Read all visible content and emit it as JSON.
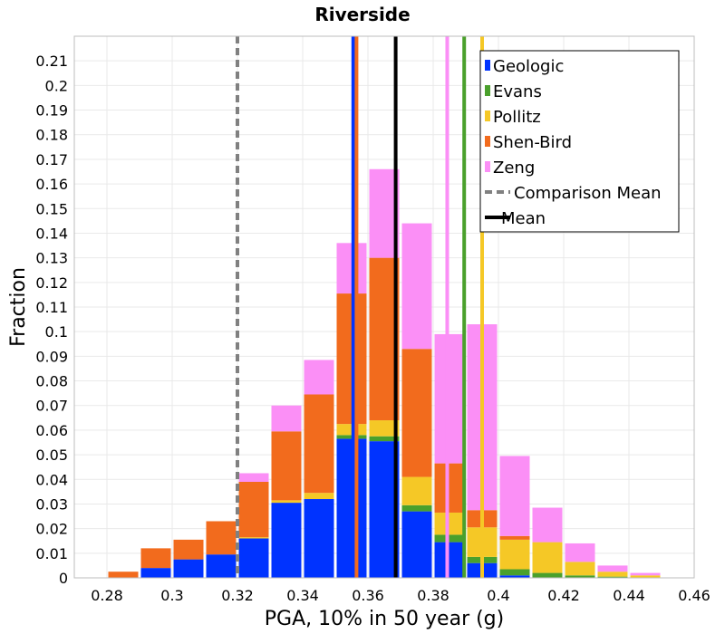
{
  "chart_data": {
    "type": "bar",
    "stacked": true,
    "title": "Riverside",
    "xlabel": "PGA, 10% in 50 year (g)",
    "ylabel": "Fraction",
    "xlim": [
      0.27,
      0.46
    ],
    "ylim": [
      0,
      0.22
    ],
    "bin_width": 0.01,
    "x_ticks": [
      "0.28",
      "0.3",
      "0.32",
      "0.34",
      "0.36",
      "0.38",
      "0.4",
      "0.42",
      "0.44",
      "0.46"
    ],
    "y_ticks": [
      "0",
      "0.01",
      "0.02",
      "0.03",
      "0.04",
      "0.05",
      "0.06",
      "0.07",
      "0.08",
      "0.09",
      "0.1",
      "0.11",
      "0.12",
      "0.13",
      "0.14",
      "0.15",
      "0.16",
      "0.17",
      "0.18",
      "0.19",
      "0.2",
      "0.21"
    ],
    "grid": true,
    "legend_position": "top-right",
    "bin_centers": [
      0.285,
      0.295,
      0.305,
      0.315,
      0.325,
      0.335,
      0.345,
      0.355,
      0.365,
      0.375,
      0.385,
      0.395,
      0.405,
      0.415,
      0.425,
      0.435,
      0.445,
      0.455
    ],
    "series": [
      {
        "name": "Geologic",
        "color": "#0033ff",
        "values": [
          0,
          0.004,
          0.0075,
          0.0095,
          0.016,
          0.0305,
          0.032,
          0.0565,
          0.0555,
          0.027,
          0.0145,
          0.006,
          0.001,
          0,
          0,
          0,
          0,
          0
        ]
      },
      {
        "name": "Evans",
        "color": "#4aa02c",
        "values": [
          0,
          0,
          0,
          0,
          0,
          0,
          0,
          0.0015,
          0.002,
          0.0025,
          0.003,
          0.0025,
          0.0025,
          0.002,
          0.001,
          0.0005,
          0,
          0
        ]
      },
      {
        "name": "Pollitz",
        "color": "#f5c826",
        "values": [
          0,
          0,
          0,
          0,
          0.0005,
          0.001,
          0.0025,
          0.0045,
          0.0065,
          0.0115,
          0.009,
          0.012,
          0.012,
          0.0125,
          0.0055,
          0.002,
          0.001,
          0
        ]
      },
      {
        "name": "Shen-Bird",
        "color": "#f26b1d",
        "values": [
          0.0025,
          0.008,
          0.008,
          0.0135,
          0.0225,
          0.028,
          0.04,
          0.053,
          0.066,
          0.052,
          0.02,
          0.007,
          0.0015,
          0,
          0,
          0,
          0,
          0
        ]
      },
      {
        "name": "Zeng",
        "color": "#fb8ff6",
        "values": [
          0,
          0,
          0,
          0,
          0.0035,
          0.0105,
          0.014,
          0.0205,
          0.036,
          0.051,
          0.0525,
          0.0755,
          0.0325,
          0.014,
          0.0075,
          0.0025,
          0.001,
          0
        ]
      }
    ],
    "vlines": [
      {
        "name": "Comparison Mean",
        "x": 0.32,
        "color": "#808080",
        "style": "dashed"
      },
      {
        "name": "Mean",
        "x": 0.3685,
        "color": "#000000",
        "style": "solid"
      },
      {
        "name": "Geologic mean",
        "x": 0.3555,
        "color": "#0033ff",
        "style": "solid"
      },
      {
        "name": "Shen-Bird mean",
        "x": 0.3565,
        "color": "#f26b1d",
        "style": "solid"
      },
      {
        "name": "Zeng mean",
        "x": 0.3843,
        "color": "#fb8ff6",
        "style": "solid"
      },
      {
        "name": "Evans mean",
        "x": 0.3895,
        "color": "#4aa02c",
        "style": "solid"
      },
      {
        "name": "Pollitz mean",
        "x": 0.395,
        "color": "#f5c826",
        "style": "solid"
      }
    ],
    "legend": [
      {
        "label": "Geologic",
        "color": "#0033ff",
        "kind": "box"
      },
      {
        "label": "Evans",
        "color": "#4aa02c",
        "kind": "box"
      },
      {
        "label": "Pollitz",
        "color": "#f5c826",
        "kind": "box"
      },
      {
        "label": "Shen-Bird",
        "color": "#f26b1d",
        "kind": "box"
      },
      {
        "label": "Zeng",
        "color": "#fb8ff6",
        "kind": "box"
      },
      {
        "label": "Comparison Mean",
        "color": "#808080",
        "kind": "dashed"
      },
      {
        "label": "Mean",
        "color": "#000000",
        "kind": "line"
      }
    ]
  }
}
